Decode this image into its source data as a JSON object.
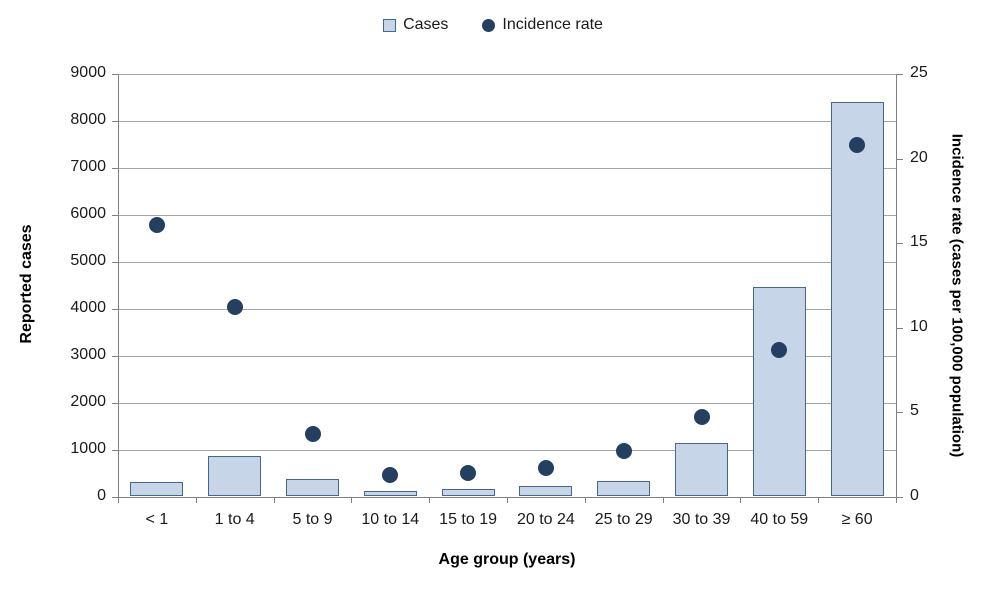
{
  "legend": {
    "cases_label": "Cases",
    "incidence_label": "Incidence rate"
  },
  "colors": {
    "bar_fill": "#c6d5e8",
    "bar_border": "#44678f",
    "dot": "#243f5f",
    "gridline": "#a6a6a6",
    "axis_line": "#808080",
    "tick_text": "#1a1a1a"
  },
  "chart_data": {
    "type": "bar",
    "subtype": "bar-and-scatter-combo",
    "categories": [
      "< 1",
      "1 to 4",
      "5 to 9",
      "10 to 14",
      "15 to 19",
      "20 to 24",
      "25 to 29",
      "30 to 39",
      "40 to 59",
      "≥ 60"
    ],
    "series": [
      {
        "name": "Cases",
        "type": "bar",
        "axis": "left",
        "values": [
          320,
          880,
          380,
          120,
          170,
          230,
          340,
          1150,
          4470,
          8400
        ]
      },
      {
        "name": "Incidence rate",
        "type": "scatter",
        "axis": "right",
        "values": [
          16.1,
          11.2,
          3.7,
          1.3,
          1.4,
          1.7,
          2.7,
          4.7,
          8.7,
          20.8
        ]
      }
    ],
    "title": "",
    "xlabel": "Age group (years)",
    "ylabel_left": "Reported cases",
    "ylabel_right": "Incidence rate (cases per 100,000 population)",
    "y_left": {
      "min": 0,
      "max": 9000,
      "step": 1000
    },
    "y_right": {
      "min": 0,
      "max": 25,
      "step": 5
    },
    "grid": true,
    "legend_position": "top-center"
  }
}
